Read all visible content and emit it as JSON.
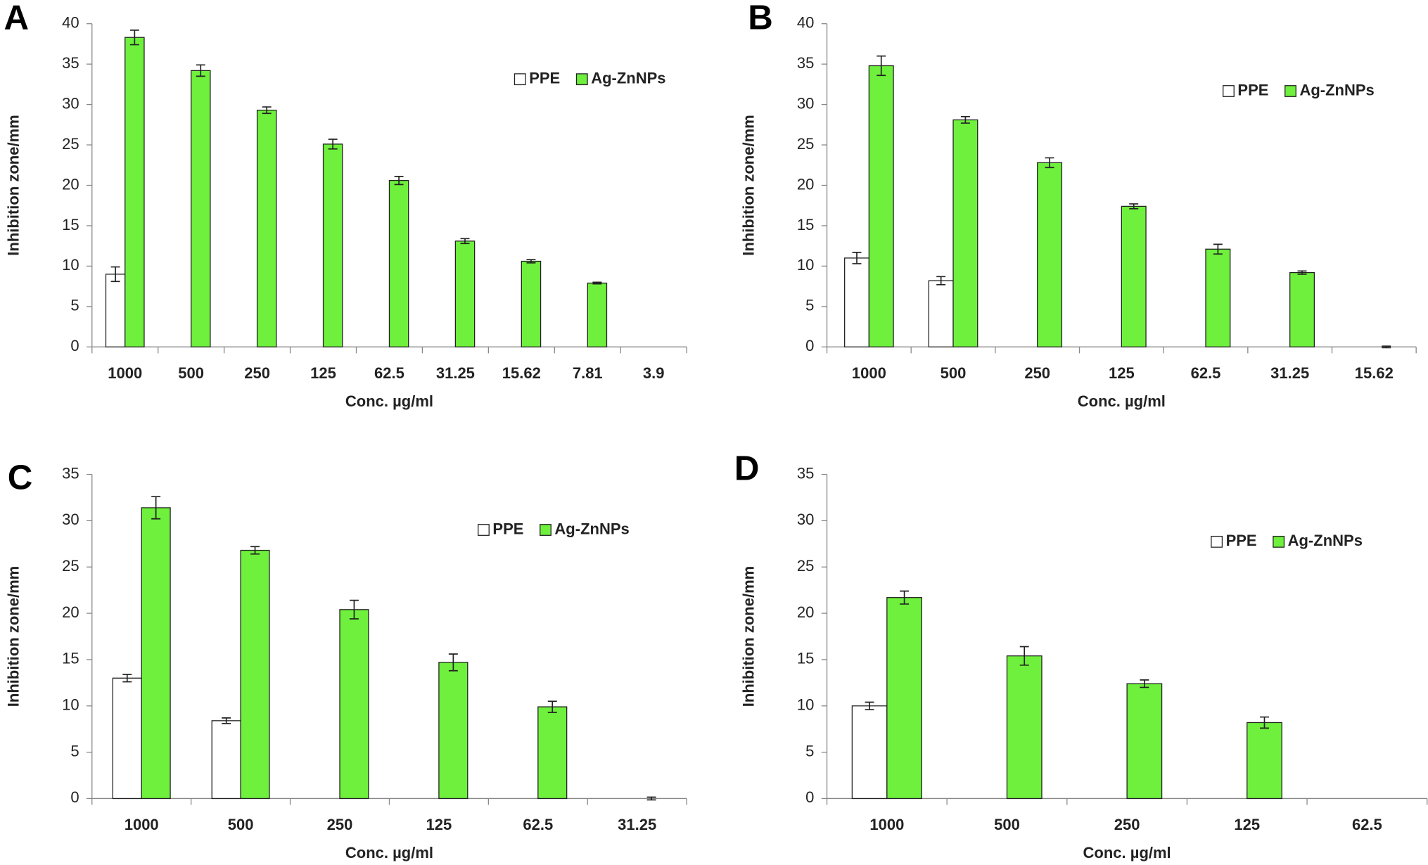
{
  "chart_data": [
    {
      "type": "bar",
      "panel": "A",
      "x_label": "Conc. µg/ml",
      "y_label": "Inhibition zone/mm",
      "categories": [
        "1000",
        "500",
        "250",
        "125",
        "62.5",
        "31.25",
        "15.62",
        "7.81",
        "3.9"
      ],
      "series": [
        {
          "name": "PPE",
          "color": "#ffffff",
          "values": [
            9,
            null,
            null,
            null,
            null,
            null,
            null,
            null,
            null
          ],
          "errors": [
            0.9,
            null,
            null,
            null,
            null,
            null,
            null,
            null,
            null
          ]
        },
        {
          "name": "Ag-ZnNPs",
          "color": "#6ef03c",
          "values": [
            38.3,
            34.2,
            29.3,
            25.1,
            20.6,
            13.1,
            10.6,
            7.9,
            null
          ],
          "errors": [
            0.9,
            0.7,
            0.4,
            0.6,
            0.5,
            0.3,
            0.2,
            0.1,
            null
          ]
        }
      ],
      "ylim": [
        0,
        40
      ],
      "yticks": [
        0,
        5,
        10,
        15,
        20,
        25,
        30,
        35,
        40
      ]
    },
    {
      "type": "bar",
      "panel": "B",
      "x_label": "Conc. µg/ml",
      "y_label": "Inhibition zone/mm",
      "categories": [
        "1000",
        "500",
        "250",
        "125",
        "62.5",
        "31.25",
        "15.62"
      ],
      "series": [
        {
          "name": "PPE",
          "color": "#ffffff",
          "values": [
            11,
            8.2,
            null,
            null,
            null,
            null,
            null
          ],
          "errors": [
            0.7,
            0.5,
            null,
            null,
            null,
            null,
            null
          ]
        },
        {
          "name": "Ag-ZnNPs",
          "color": "#6ef03c",
          "values": [
            34.8,
            28.1,
            22.8,
            17.4,
            12.1,
            9.2,
            0
          ],
          "errors": [
            1.2,
            0.4,
            0.6,
            0.3,
            0.6,
            0.2,
            0.1
          ]
        }
      ],
      "ylim": [
        0,
        40
      ],
      "yticks": [
        0,
        5,
        10,
        15,
        20,
        25,
        30,
        35,
        40
      ]
    },
    {
      "type": "bar",
      "panel": "C",
      "x_label": "Conc. µg/ml",
      "y_label": "Inhibition zone/mm",
      "categories": [
        "1000",
        "500",
        "250",
        "125",
        "62.5",
        "31.25"
      ],
      "series": [
        {
          "name": "PPE",
          "color": "#ffffff",
          "values": [
            13,
            8.4,
            null,
            null,
            null,
            null
          ],
          "errors": [
            0.4,
            0.3,
            null,
            null,
            null,
            null
          ]
        },
        {
          "name": "Ag-ZnNPs",
          "color": "#6ef03c",
          "values": [
            31.4,
            26.8,
            20.4,
            14.7,
            9.9,
            0
          ],
          "errors": [
            1.2,
            0.4,
            1.0,
            0.9,
            0.6,
            0.15
          ]
        }
      ],
      "ylim": [
        0,
        35
      ],
      "yticks": [
        0,
        5,
        10,
        15,
        20,
        25,
        30,
        35
      ]
    },
    {
      "type": "bar",
      "panel": "D",
      "x_label": "Conc. µg/ml",
      "y_label": "Inhibition zone/mm",
      "categories": [
        "1000",
        "500",
        "250",
        "125",
        "62.5"
      ],
      "series": [
        {
          "name": "PPE",
          "color": "#ffffff",
          "values": [
            10,
            null,
            null,
            null,
            null
          ],
          "errors": [
            0.4,
            null,
            null,
            null,
            null
          ]
        },
        {
          "name": "Ag-ZnNPs",
          "color": "#6ef03c",
          "values": [
            21.7,
            15.4,
            12.4,
            8.2,
            null
          ],
          "errors": [
            0.7,
            1.0,
            0.4,
            0.6,
            null
          ]
        }
      ],
      "ylim": [
        0,
        35
      ],
      "yticks": [
        0,
        5,
        10,
        15,
        20,
        25,
        30,
        35
      ]
    }
  ]
}
